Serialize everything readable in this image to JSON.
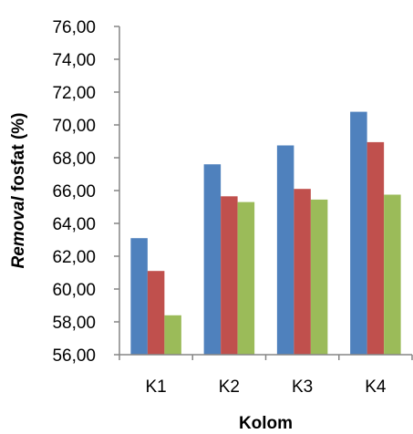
{
  "chart_data": {
    "type": "bar",
    "categories": [
      "K1",
      "K2",
      "K3",
      "K4"
    ],
    "series": [
      {
        "values": [
          63.1,
          67.6,
          68.75,
          70.8
        ],
        "color": "#4f81bd"
      },
      {
        "values": [
          61.1,
          65.65,
          66.1,
          68.95
        ],
        "color": "#c0504d"
      },
      {
        "values": [
          58.4,
          65.3,
          65.45,
          65.75
        ],
        "color": "#9bbb59"
      }
    ],
    "xlabel": "Kolom",
    "ylabel_italic": "Removal",
    "ylabel_rest": " fosfat (%)",
    "ylim": [
      56,
      76
    ],
    "ytick_step": 2,
    "yticks": [
      "56,00",
      "58,00",
      "60,00",
      "62,00",
      "64,00",
      "66,00",
      "68,00",
      "70,00",
      "72,00",
      "74,00",
      "76,00"
    ],
    "grid": false,
    "legend": "none"
  }
}
